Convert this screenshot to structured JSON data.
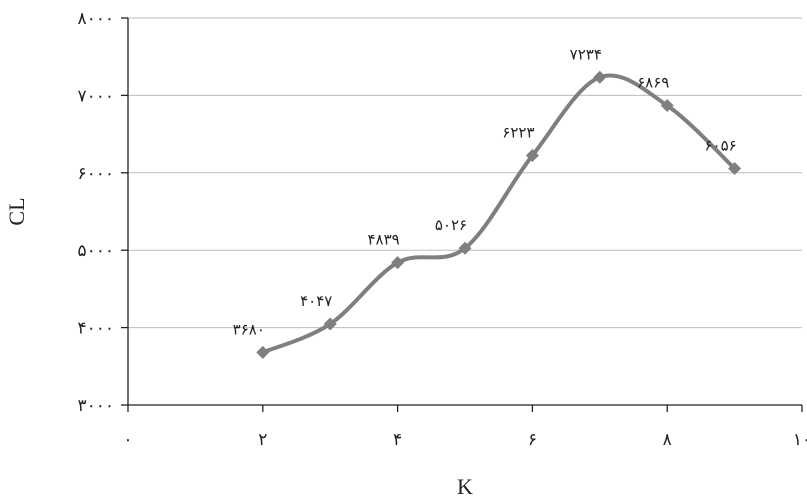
{
  "chart_data": {
    "type": "line",
    "title": "",
    "xlabel": "K",
    "ylabel": "CL",
    "xlim": [
      0,
      10
    ],
    "ylim": [
      3000,
      8000
    ],
    "x_ticks": [
      0,
      2,
      4,
      6,
      8,
      10
    ],
    "x_tick_labels": [
      "۰",
      "۲",
      "۴",
      "۶",
      "۸",
      "۱۰"
    ],
    "y_ticks": [
      3000,
      4000,
      5000,
      6000,
      7000,
      8000
    ],
    "y_tick_labels": [
      "۳۰۰۰",
      "۴۰۰۰",
      "۵۰۰۰",
      "۶۰۰۰",
      "۷۰۰۰",
      "۸۰۰۰"
    ],
    "grid": "horizontal",
    "line_color": "#7f7f7f",
    "marker": "diamond",
    "series": [
      {
        "x": [
          2,
          3,
          4,
          5,
          6,
          7,
          8,
          9
        ],
        "values": [
          3680,
          4047,
          4839,
          5026,
          6223,
          7234,
          6869,
          6056
        ],
        "labels": [
          "۳۶۸۰",
          "۴۰۴۷",
          "۴۸۳۹",
          "۵۰۲۶",
          "۶۲۲۳",
          "۷۲۳۴",
          "۶۸۶۹",
          "۶۰۵۶"
        ]
      }
    ]
  }
}
